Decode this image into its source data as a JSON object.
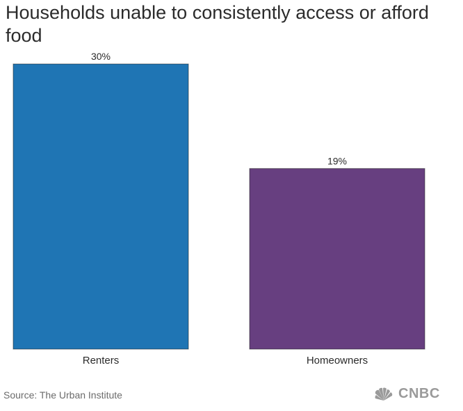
{
  "chart_data": {
    "type": "bar",
    "title": "Households unable to consistently access or afford food",
    "categories": [
      "Renters",
      "Homeowners"
    ],
    "values": [
      30,
      19
    ],
    "value_labels": [
      "30%",
      "19%"
    ],
    "ylim": [
      0,
      30
    ],
    "grid": false,
    "colors": [
      "#1f75b4",
      "#673f80"
    ]
  },
  "footer": {
    "source": "Source: The Urban Institute",
    "logo": "CNBC",
    "logo_icon": "peacock-icon"
  }
}
